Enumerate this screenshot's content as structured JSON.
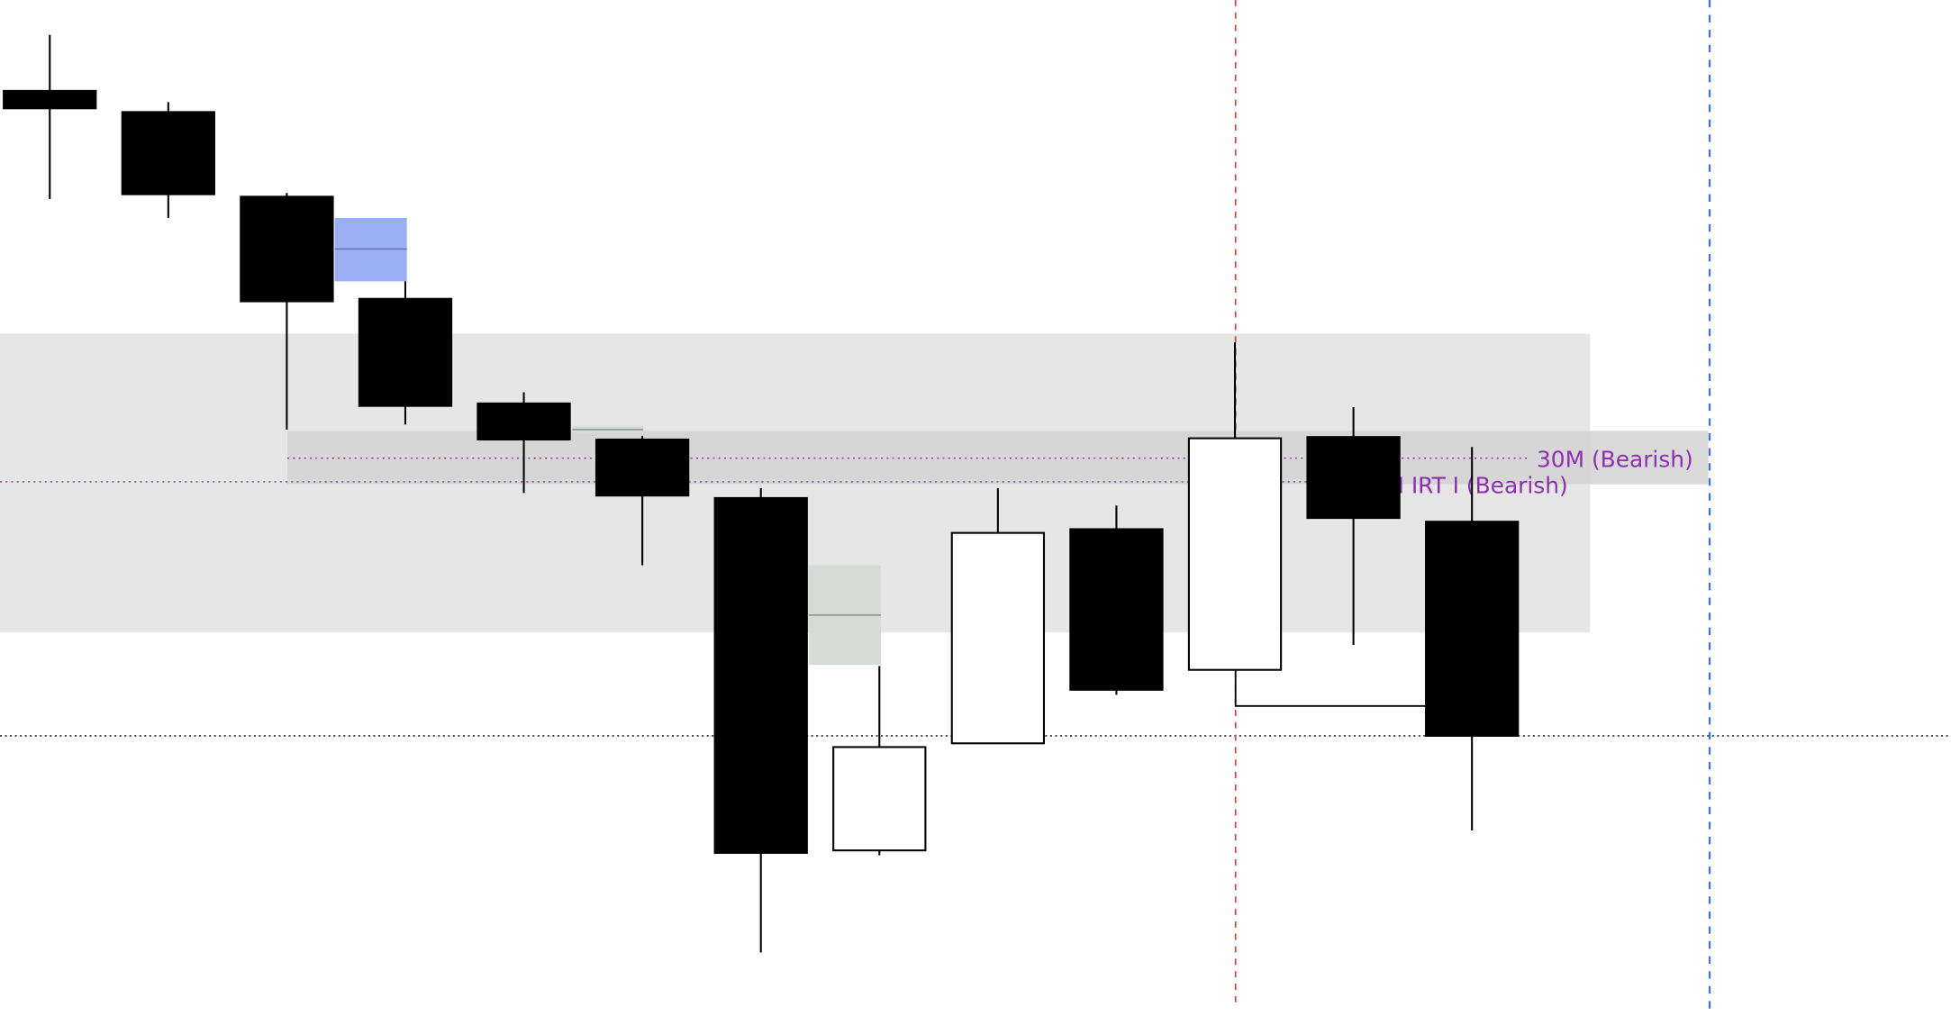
{
  "chart_data": {
    "type": "candlestick",
    "title": "",
    "xlabel": "",
    "ylabel": "",
    "grid": false,
    "colors": {
      "bearish": "#000000",
      "bullish": "#ffffff",
      "zone": "#e6e6e6",
      "zone_inner": "#d2d2d2",
      "fvg_blue": "#9aaef5",
      "fvg_grey": "#d5dbd6",
      "label": "#8e2fb0",
      "vline_red": "#c0504d",
      "vline_blue": "#3d6ff0"
    },
    "candles": [
      {
        "open": 727,
        "high": 772,
        "low": 640,
        "close": 713
      },
      {
        "open": 710,
        "high": 718,
        "low": 625,
        "close": 644
      },
      {
        "open": 642,
        "high": 645,
        "low": 455,
        "close": 558
      },
      {
        "open": 560,
        "high": 574,
        "low": 459,
        "close": 474
      },
      {
        "open": 476,
        "high": 485,
        "low": 404,
        "close": 447
      },
      {
        "open": 447,
        "high": 450,
        "low": 346,
        "close": 402
      },
      {
        "open": 400,
        "high": 408,
        "low": 35,
        "close": 115
      },
      {
        "open": 117,
        "high": 265,
        "low": 113,
        "close": 200
      },
      {
        "open": 203,
        "high": 408,
        "low": 203,
        "close": 372
      },
      {
        "open": 375,
        "high": 394,
        "low": 242,
        "close": 246
      },
      {
        "open": 262,
        "high": 525,
        "low": 262,
        "close": 448
      },
      {
        "open": 449,
        "high": 473,
        "low": 282,
        "close": 384
      },
      {
        "open": 381,
        "high": 441,
        "low": 133,
        "close": 209
      }
    ],
    "annotations": {
      "labels": [
        {
          "text": "30M (Bearish)",
          "price": 432
        },
        {
          "text": "M IRT I (Bearish)",
          "price": 413
        }
      ],
      "horizontal_dotted_black": 209,
      "vertical_lines": [
        {
          "color": "red",
          "candle_index": 10
        },
        {
          "color": "blue",
          "after_last": true
        }
      ]
    }
  }
}
